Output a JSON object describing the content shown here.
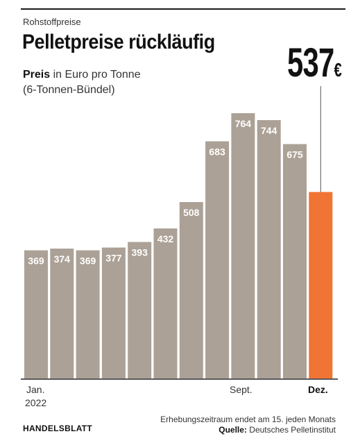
{
  "header": {
    "kicker": "Rohstoffpreise",
    "title": "Pelletpreise rückläufig",
    "subtitle_bold": "Preis",
    "subtitle_rest": " in Euro pro Tonne",
    "subtitle_line2": "(6-Tonnen-Bündel)"
  },
  "highlight": {
    "value": "537",
    "unit": "€"
  },
  "x_labels": {
    "jan": "Jan.",
    "year": "2022",
    "sept": "Sept.",
    "dez": "Dez."
  },
  "footer": {
    "brand": "HANDELSBLATT",
    "note": "Erhebungszeitraum endet am 15. jeden Monats",
    "source_label": "Quelle:",
    "source_text": " Deutsches Pelletinstitut"
  },
  "colors": {
    "bar": "#aca196",
    "highlight_bar": "#f07434",
    "label": "#ffffff",
    "axis": "#222222"
  },
  "chart_data": {
    "type": "bar",
    "categories": [
      "Jan.",
      "",
      "",
      "",
      "",
      "",
      "",
      "",
      "Sept.",
      "",
      "",
      "Dez."
    ],
    "values": [
      369,
      374,
      369,
      377,
      393,
      432,
      508,
      683,
      764,
      744,
      675,
      537
    ],
    "data_labels": [
      "369",
      "374",
      "369",
      "377",
      "393",
      "432",
      "508",
      "683",
      "764",
      "744",
      "675",
      ""
    ],
    "ylim": [
      0,
      820
    ],
    "highlight_index": 11,
    "title": "Pelletpreise rückläufig",
    "ylabel": "Preis in Euro pro Tonne",
    "grid": false
  }
}
